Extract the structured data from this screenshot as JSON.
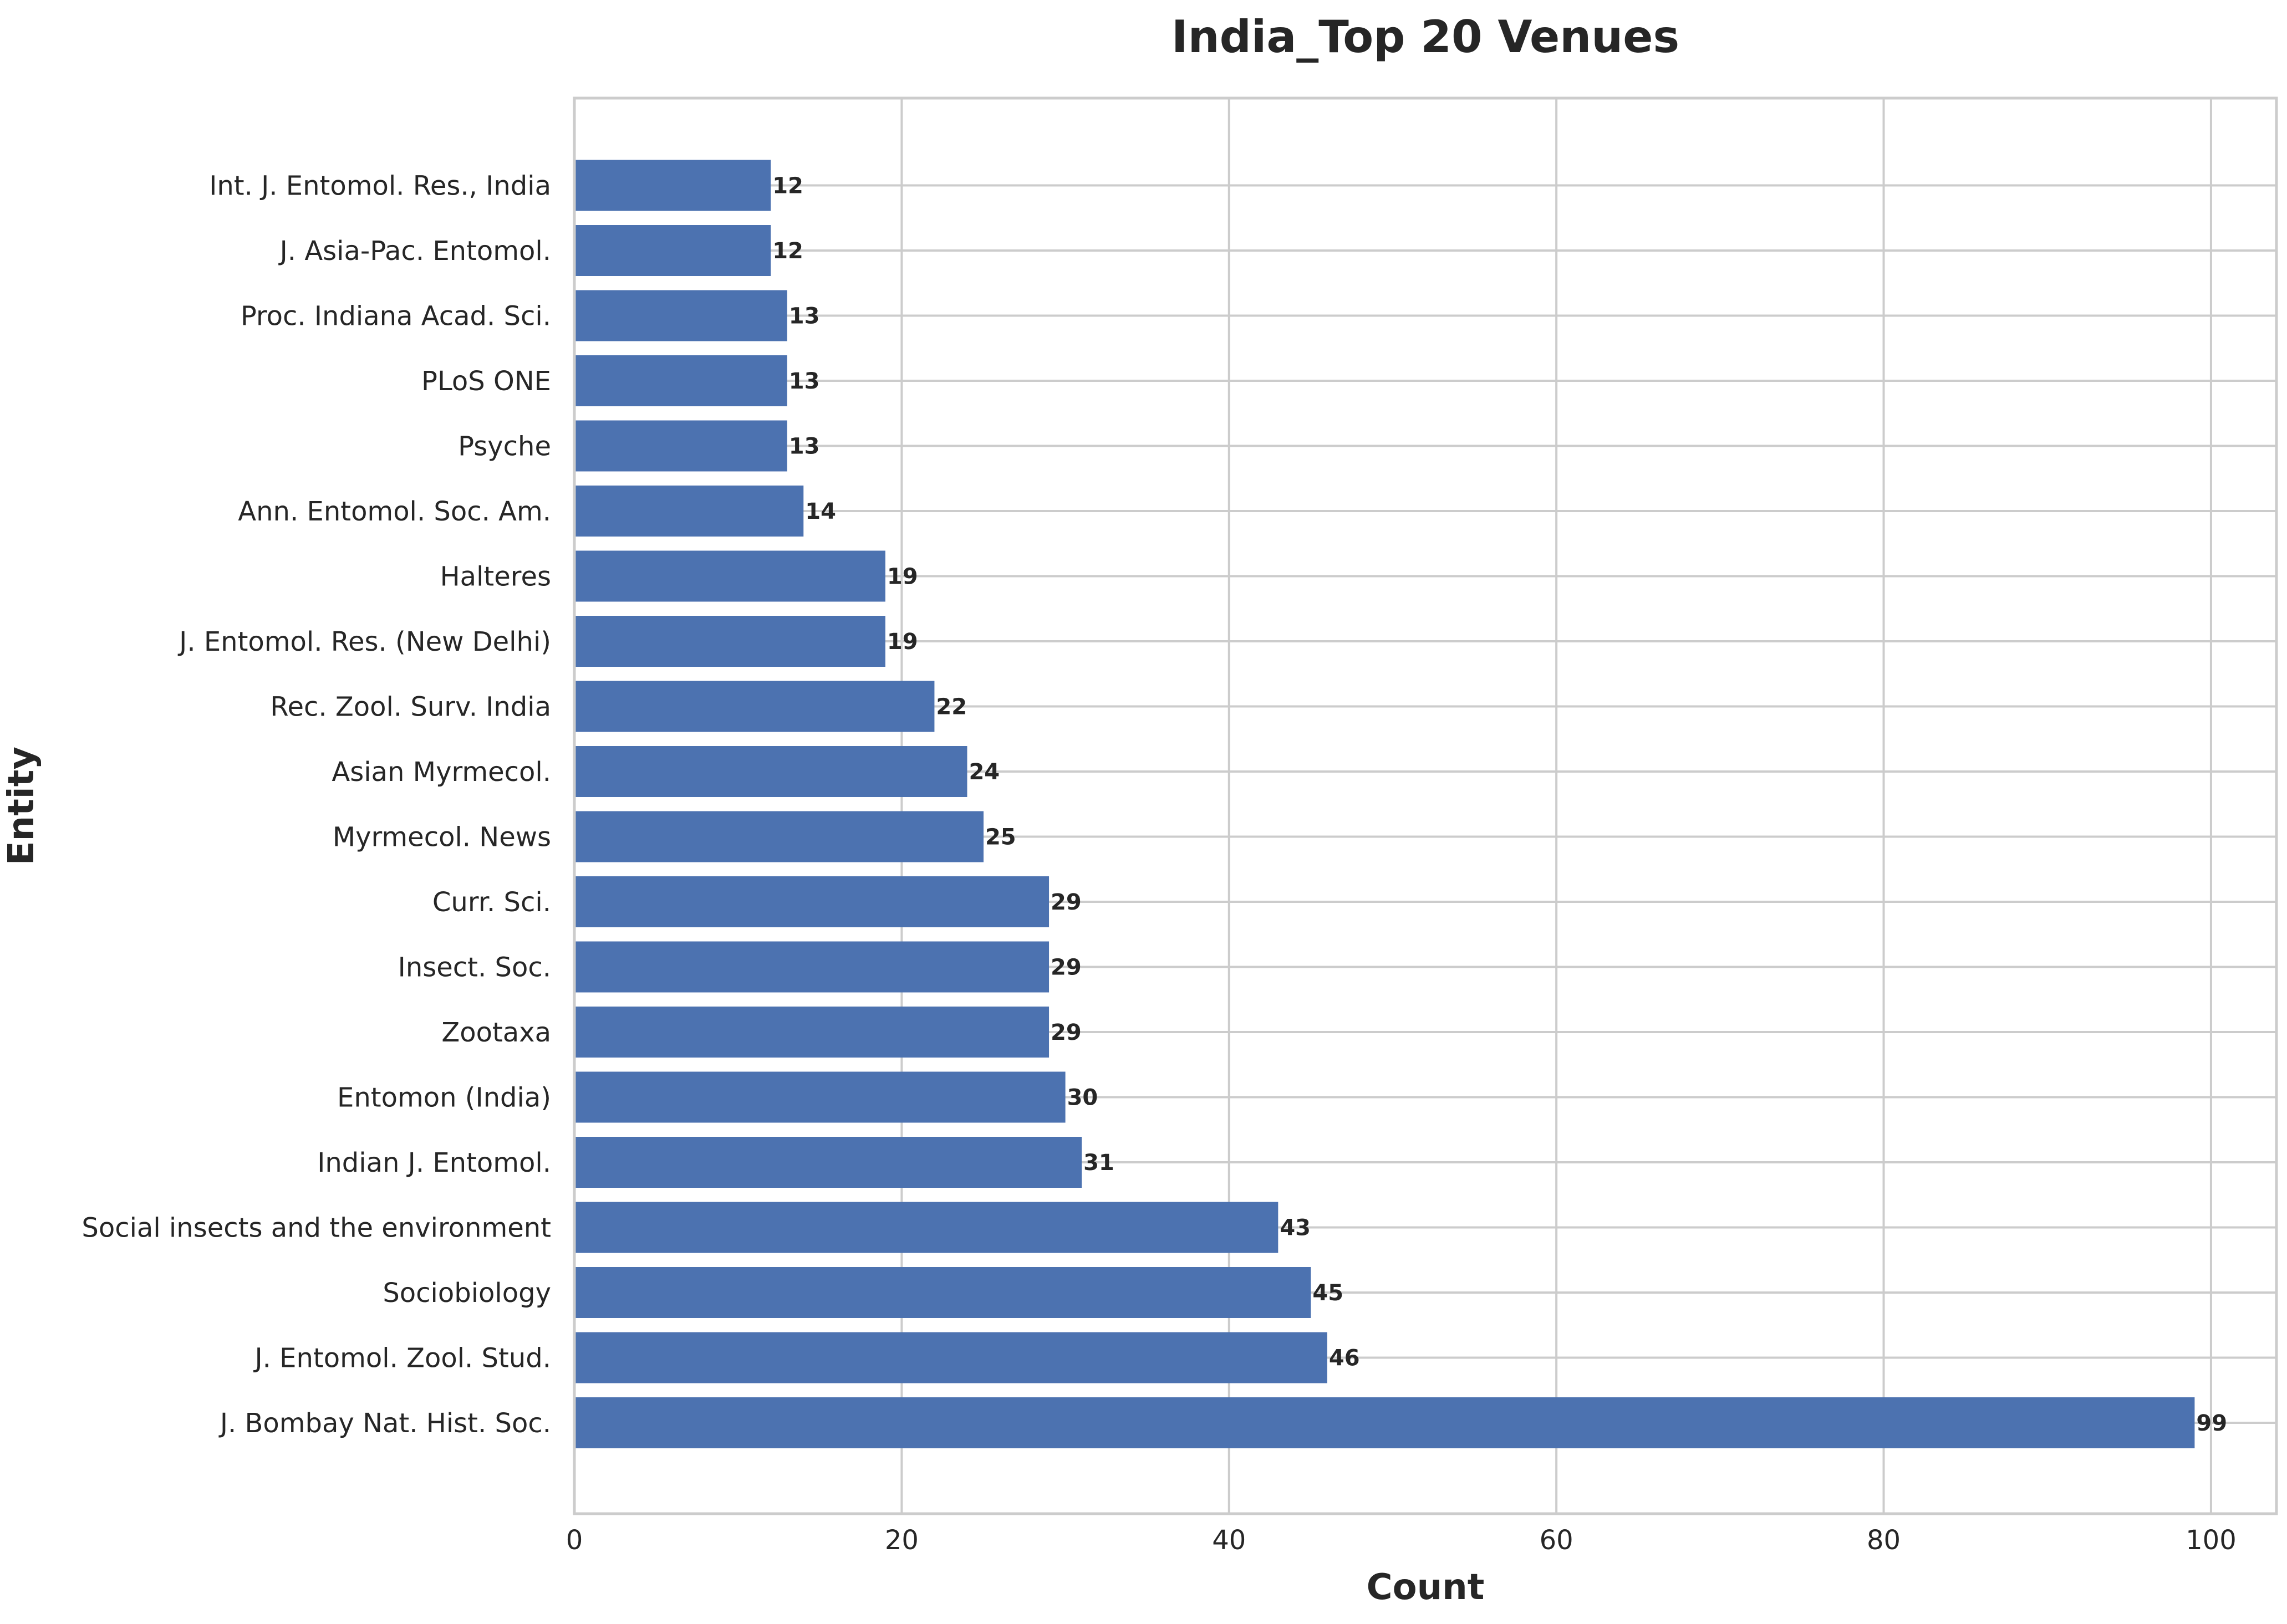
{
  "chart_data": {
    "type": "bar",
    "orientation": "horizontal",
    "title": "India_Top 20 Venues",
    "xlabel": "Count",
    "ylabel": "Entity",
    "xlim": [
      0,
      104
    ],
    "xticks": [
      0,
      20,
      40,
      60,
      80,
      100
    ],
    "grid": true,
    "bar_color": "#4c72b0",
    "categories": [
      "J. Bombay Nat. Hist. Soc.",
      "J. Entomol. Zool. Stud.",
      "Sociobiology",
      "Social insects and the environment",
      "Indian J. Entomol.",
      "Entomon (India)",
      "Zootaxa",
      "Insect. Soc.",
      "Curr. Sci.",
      "Myrmecol. News",
      "Asian Myrmecol.",
      "Rec. Zool. Surv. India",
      "J. Entomol. Res. (New Delhi)",
      "Halteres",
      "Ann. Entomol. Soc. Am.",
      "Psyche",
      "PLoS ONE",
      "Proc. Indiana Acad. Sci.",
      "J. Asia-Pac. Entomol.",
      "Int. J. Entomol. Res., India"
    ],
    "values": [
      99,
      46,
      45,
      43,
      31,
      30,
      29,
      29,
      29,
      25,
      24,
      22,
      19,
      19,
      14,
      13,
      13,
      13,
      12,
      12
    ]
  }
}
